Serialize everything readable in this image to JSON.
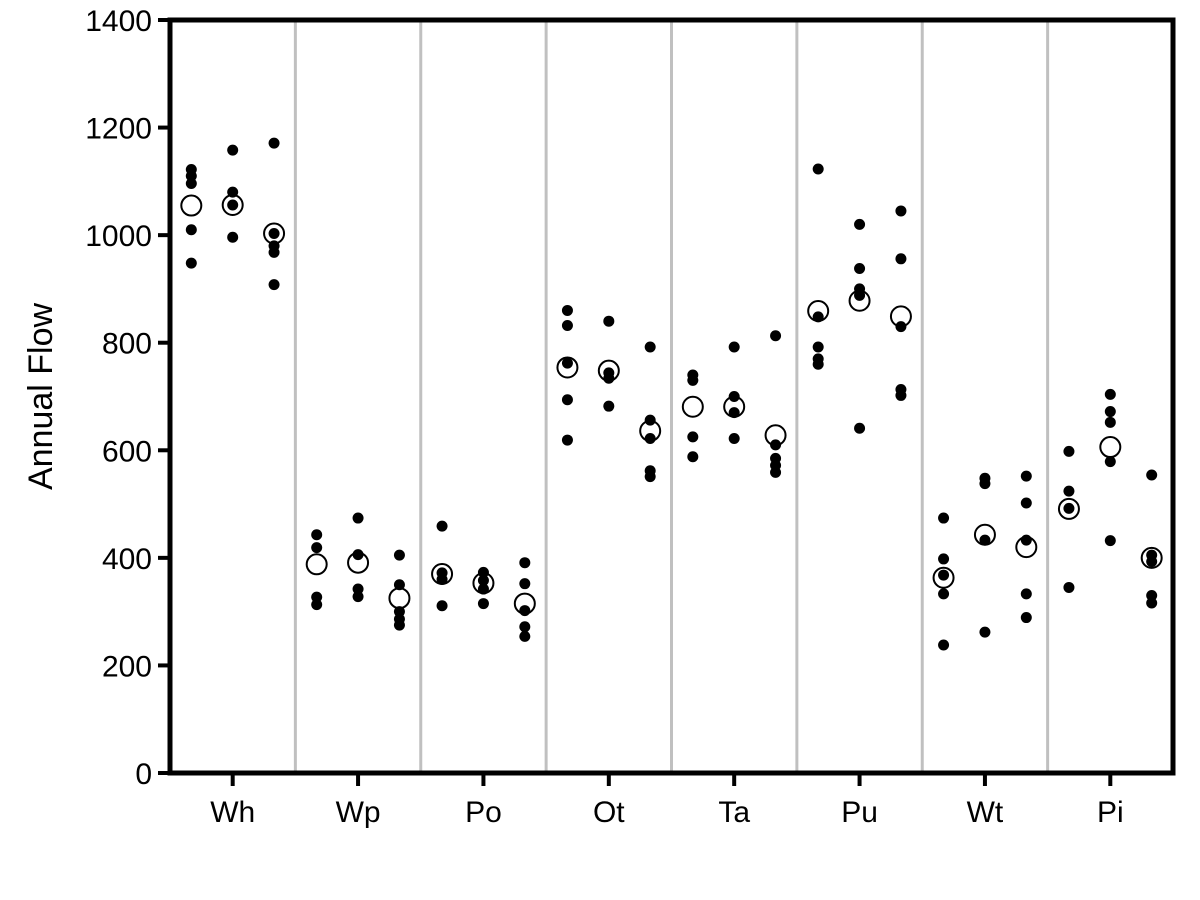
{
  "chart_data": {
    "type": "scatter",
    "title": "",
    "xlabel": "",
    "ylabel": "Annual Flow",
    "ylim": [
      0,
      1400
    ],
    "yticks": [
      0,
      200,
      400,
      600,
      800,
      1000,
      1200,
      1400
    ],
    "grid": false,
    "legend": "none",
    "categories": [
      "Wh",
      "Wp",
      "Po",
      "Ot",
      "Ta",
      "Pu",
      "Wt",
      "Pi"
    ],
    "sub_positions": 3,
    "separator_color": "#c0c0c0",
    "groups": [
      {
        "category": "Wh",
        "columns": [
          {
            "points": [
              1122,
              1110,
              1096,
              1010,
              948
            ],
            "mean": 1055
          },
          {
            "points": [
              1158,
              1080,
              1056,
              996
            ],
            "mean": 1056
          },
          {
            "points": [
              1171,
              1003,
              980,
              968,
              908
            ],
            "mean": 1003
          }
        ]
      },
      {
        "category": "Wp",
        "columns": [
          {
            "points": [
              443,
              419,
              327,
              313
            ],
            "mean": 388
          },
          {
            "points": [
              474,
              406,
              342,
              328
            ],
            "mean": 391
          },
          {
            "points": [
              405,
              350,
              300,
              286,
              275
            ],
            "mean": 325
          }
        ]
      },
      {
        "category": "Po",
        "columns": [
          {
            "points": [
              459,
              372,
              360,
              311
            ],
            "mean": 370
          },
          {
            "points": [
              373,
              358,
              342,
              315
            ],
            "mean": 353
          },
          {
            "points": [
              391,
              352,
              302,
              272,
              254
            ],
            "mean": 315
          }
        ]
      },
      {
        "category": "Ot",
        "columns": [
          {
            "points": [
              860,
              832,
              762,
              694,
              619
            ],
            "mean": 754
          },
          {
            "points": [
              840,
              744,
              734,
              682
            ],
            "mean": 748
          },
          {
            "points": [
              792,
              656,
              622,
              562,
              551
            ],
            "mean": 636
          }
        ]
      },
      {
        "category": "Ta",
        "columns": [
          {
            "points": [
              740,
              730,
              625,
              588
            ],
            "mean": 681
          },
          {
            "points": [
              792,
              700,
              670,
              622
            ],
            "mean": 681
          },
          {
            "points": [
              813,
              610,
              585,
              572,
              559
            ],
            "mean": 628
          }
        ]
      },
      {
        "category": "Pu",
        "columns": [
          {
            "points": [
              1123,
              848,
              792,
              770,
              760
            ],
            "mean": 859
          },
          {
            "points": [
              1020,
              938,
              900,
              888,
              641
            ],
            "mean": 878
          },
          {
            "points": [
              1045,
              956,
              830,
              713,
              702
            ],
            "mean": 849
          }
        ]
      },
      {
        "category": "Wt",
        "columns": [
          {
            "points": [
              474,
              398,
              368,
              333,
              238
            ],
            "mean": 363
          },
          {
            "points": [
              548,
              538,
              433,
              262
            ],
            "mean": 443
          },
          {
            "points": [
              552,
              502,
              433,
              333,
              289
            ],
            "mean": 420
          }
        ]
      },
      {
        "category": "Pi",
        "columns": [
          {
            "points": [
              598,
              524,
              492,
              345
            ],
            "mean": 491
          },
          {
            "points": [
              704,
              672,
              652,
              579,
              432
            ],
            "mean": 606
          },
          {
            "points": [
              554,
              405,
              393,
              330,
              316
            ],
            "mean": 400
          }
        ]
      }
    ]
  }
}
